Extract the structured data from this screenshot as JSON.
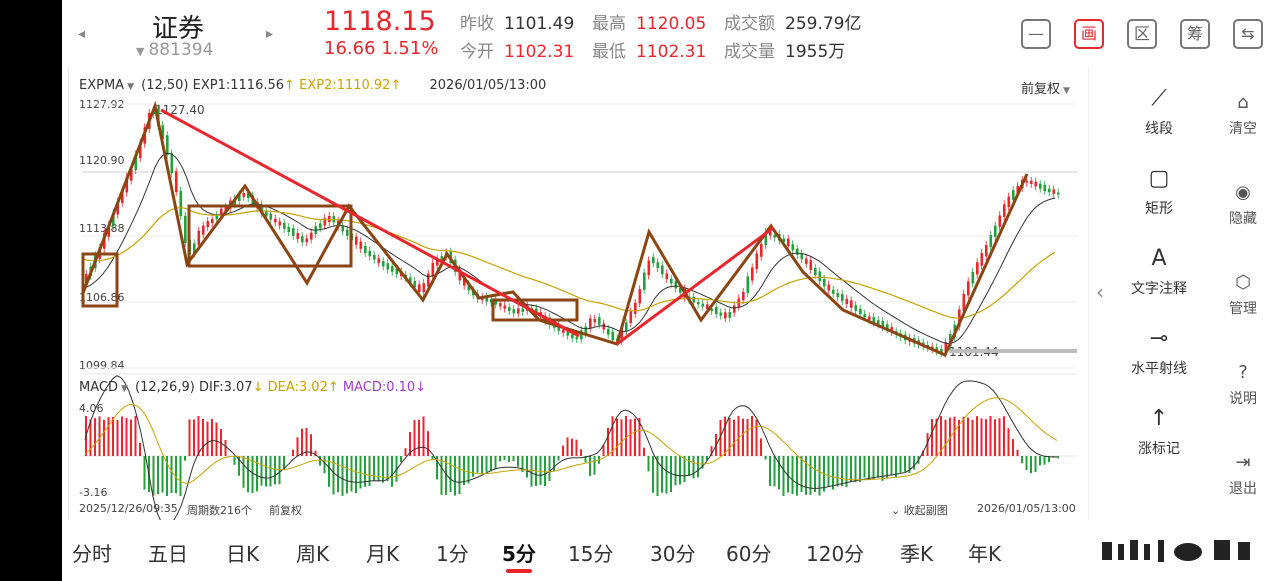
{
  "header": {
    "name": "证券",
    "code": "881394",
    "price": "1118.15",
    "change": "16.66  1.51%",
    "stats": [
      {
        "key": "昨收",
        "value": "1101.49",
        "red": false,
        "left": 398,
        "top": 9
      },
      {
        "key": "最高",
        "value": "1120.05",
        "red": true,
        "left": 530,
        "top": 9
      },
      {
        "key": "成交额",
        "value": "259.79亿",
        "red": false,
        "left": 662,
        "top": 9
      },
      {
        "key": "今开",
        "value": "1102.31",
        "red": true,
        "left": 398,
        "top": 37
      },
      {
        "key": "最低",
        "value": "1102.31",
        "red": true,
        "left": 530,
        "top": 37
      },
      {
        "key": "成交量",
        "value": "1955万",
        "red": false,
        "left": 662,
        "top": 37
      }
    ],
    "toolbar_icons": [
      {
        "name": "minus-square-icon",
        "glyph": "—"
      },
      {
        "name": "draw-icon",
        "glyph": "画"
      },
      {
        "name": "region-icon",
        "glyph": "区"
      },
      {
        "name": "chip-icon",
        "glyph": "筹"
      },
      {
        "name": "switch-device-icon",
        "glyph": "⇆"
      }
    ]
  },
  "main_indicator": {
    "name": "EXPMA",
    "params": "(12,50)",
    "exp1": "EXP1:1116.56",
    "exp2": "EXP2:1110.92",
    "datetime": "2026/01/05/13:00",
    "adjust": "前复权",
    "ylabels": [
      "1127.92",
      "1120.90",
      "1113.88",
      "1106.86",
      "1099.84"
    ],
    "high_mark": "1127.40",
    "low_mark": "1101.44"
  },
  "sub_indicator": {
    "name": "MACD",
    "params": "(12,26,9)",
    "dif": "DIF:3.07",
    "dea": "DEA:3.02",
    "macd": "MACD:0.10",
    "top": "4.06",
    "bottom": "-3.16"
  },
  "chart_footer": {
    "start": "2025/12/26/09:35",
    "period_count": "周期数216个",
    "adjust": "前复权",
    "collapse": "收起副图",
    "end": "2026/01/05/13:00"
  },
  "tools": [
    {
      "name": "line-segment",
      "glyph": "⟋",
      "label": "线段"
    },
    {
      "name": "rectangle",
      "glyph": "▢",
      "label": "矩形"
    },
    {
      "name": "text-note",
      "glyph": "A",
      "label": "文字注释"
    },
    {
      "name": "horizontal-ray",
      "glyph": "⊸",
      "label": "水平射线"
    },
    {
      "name": "rise-mark",
      "glyph": "↑",
      "label": "涨标记"
    }
  ],
  "side_actions": [
    {
      "name": "clear",
      "glyph": "⌂",
      "label": "清空"
    },
    {
      "name": "hide",
      "glyph": "◉",
      "label": "隐藏"
    },
    {
      "name": "manage",
      "glyph": "⬡",
      "label": "管理"
    },
    {
      "name": "help",
      "glyph": "?",
      "label": "说明"
    },
    {
      "name": "exit",
      "glyph": "⇥",
      "label": "退出"
    }
  ],
  "periods": [
    "分时",
    "五日",
    "日K",
    "周K",
    "月K",
    "1分",
    "5分",
    "15分",
    "30分",
    "60分",
    "120分",
    "季K",
    "年K"
  ],
  "active_period": "5分",
  "colors": {
    "up": "#e8262c",
    "down": "#22a03c",
    "annot": "#8b4513",
    "trend": "#e8262c"
  }
}
